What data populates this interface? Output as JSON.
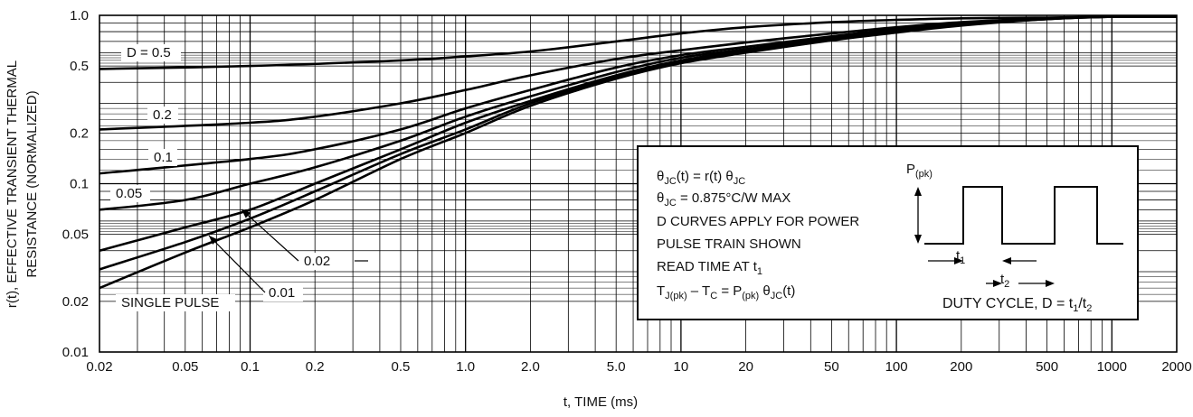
{
  "chart_data": {
    "type": "line",
    "xlabel": "t, TIME (ms)",
    "ylabel_line1": "r(t), EFFECTIVE TRANSIENT THERMAL",
    "ylabel_line2": "RESISTANCE (NORMALIZED)",
    "x_scale": "log",
    "y_scale": "log",
    "xlim": [
      0.02,
      2000
    ],
    "ylim": [
      0.01,
      1.0
    ],
    "grid": true,
    "x_ticks": [
      "0.02",
      "0.05",
      "0.1",
      "0.2",
      "0.5",
      "1.0",
      "2.0",
      "5.0",
      "10",
      "20",
      "50",
      "100",
      "200",
      "500",
      "1000",
      "2000"
    ],
    "y_ticks": [
      "0.01",
      "0.02",
      "0.05",
      "0.1",
      "0.2",
      "0.5",
      "1.0"
    ],
    "series": [
      {
        "name": "D = 0.5",
        "x": [
          0.02,
          0.1,
          0.5,
          1,
          2,
          5,
          10,
          20,
          50,
          100,
          200,
          500,
          1000,
          2000
        ],
        "y": [
          0.48,
          0.5,
          0.54,
          0.57,
          0.61,
          0.7,
          0.78,
          0.85,
          0.91,
          0.94,
          0.96,
          0.97,
          0.98,
          0.98
        ]
      },
      {
        "name": "0.2",
        "x": [
          0.02,
          0.1,
          0.2,
          0.5,
          1,
          2,
          5,
          10,
          20,
          50,
          100,
          200,
          500,
          1000,
          2000
        ],
        "y": [
          0.21,
          0.23,
          0.25,
          0.3,
          0.36,
          0.44,
          0.55,
          0.62,
          0.69,
          0.78,
          0.85,
          0.91,
          0.96,
          0.98,
          0.98
        ]
      },
      {
        "name": "0.1",
        "x": [
          0.02,
          0.1,
          0.2,
          0.5,
          1,
          2,
          5,
          10,
          20,
          50,
          100,
          200,
          500,
          1000,
          2000
        ],
        "y": [
          0.115,
          0.14,
          0.16,
          0.21,
          0.28,
          0.36,
          0.49,
          0.58,
          0.65,
          0.75,
          0.83,
          0.9,
          0.96,
          0.98,
          0.98
        ]
      },
      {
        "name": "0.05",
        "x": [
          0.02,
          0.05,
          0.1,
          0.2,
          0.5,
          1,
          2,
          5,
          10,
          20,
          50,
          100,
          200,
          500,
          1000,
          2000
        ],
        "y": [
          0.07,
          0.08,
          0.1,
          0.125,
          0.18,
          0.25,
          0.33,
          0.46,
          0.56,
          0.63,
          0.74,
          0.82,
          0.89,
          0.96,
          0.98,
          0.98
        ]
      },
      {
        "name": "0.02",
        "x": [
          0.02,
          0.05,
          0.1,
          0.2,
          0.5,
          1,
          2,
          5,
          10,
          20,
          50,
          100,
          200,
          500,
          1000,
          2000
        ],
        "y": [
          0.04,
          0.055,
          0.07,
          0.1,
          0.16,
          0.23,
          0.31,
          0.44,
          0.54,
          0.62,
          0.73,
          0.81,
          0.88,
          0.95,
          0.98,
          0.98
        ]
      },
      {
        "name": "0.01",
        "x": [
          0.02,
          0.05,
          0.1,
          0.2,
          0.5,
          1,
          2,
          5,
          10,
          20,
          50,
          100,
          200,
          500,
          1000,
          2000
        ],
        "y": [
          0.031,
          0.045,
          0.062,
          0.09,
          0.15,
          0.21,
          0.3,
          0.43,
          0.53,
          0.61,
          0.72,
          0.8,
          0.88,
          0.95,
          0.98,
          0.98
        ]
      },
      {
        "name": "SINGLE PULSE",
        "x": [
          0.02,
          0.05,
          0.1,
          0.2,
          0.5,
          1,
          2,
          5,
          10,
          20,
          50,
          100,
          200,
          500,
          1000,
          2000
        ],
        "y": [
          0.024,
          0.039,
          0.055,
          0.08,
          0.14,
          0.2,
          0.29,
          0.42,
          0.52,
          0.6,
          0.71,
          0.79,
          0.87,
          0.95,
          0.98,
          0.98
        ]
      }
    ]
  },
  "notes": {
    "line1": [
      "θ",
      "JC",
      "(t) = r(t) θ",
      "JC"
    ],
    "line2": [
      "θ",
      "JC",
      " = 0.875°C/W MAX"
    ],
    "line3": "D CURVES APPLY FOR POWER",
    "line4": "PULSE TRAIN SHOWN",
    "line5": [
      "READ TIME AT t",
      "1"
    ],
    "line6": [
      "T",
      "J(pk)",
      " – T",
      "C",
      " = P",
      "(pk)",
      " θ",
      "JC",
      "(t)"
    ],
    "pk_label": [
      "P",
      "(pk)"
    ],
    "t1_label": [
      "t",
      "1"
    ],
    "t2_label": [
      "t",
      "2"
    ],
    "duty_label": [
      "DUTY CYCLE, D = t",
      "1",
      "/t",
      "2"
    ]
  }
}
